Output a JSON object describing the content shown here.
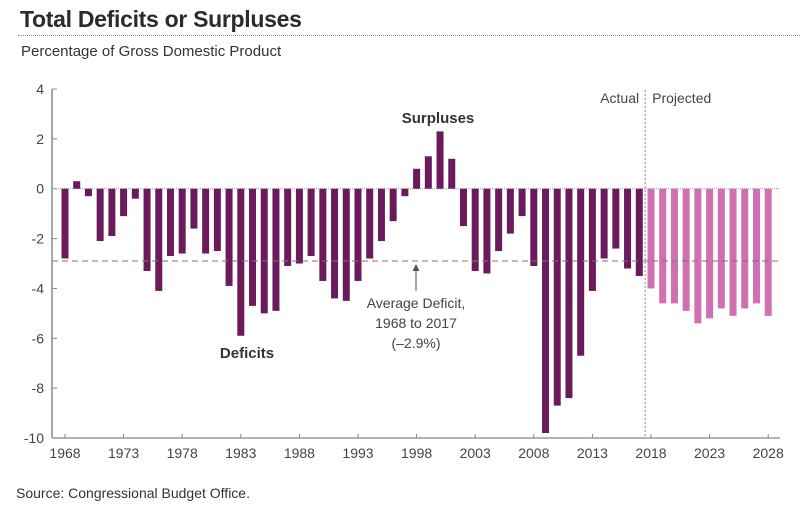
{
  "title": "Total Deficits or Surpluses",
  "subtitle": "Percentage of Gross Domestic Product",
  "source": "Source: Congressional Budget Office.",
  "chart_data": {
    "type": "bar",
    "title": "Total Deficits or Surpluses",
    "subtitle": "Percentage of Gross Domestic Product",
    "xlabel": "",
    "ylabel": "",
    "ylim": [
      -10,
      4
    ],
    "yticks": [
      4,
      2,
      0,
      -2,
      -4,
      -6,
      -8,
      -10
    ],
    "xticks": [
      1968,
      1973,
      1978,
      1983,
      1988,
      1993,
      1998,
      2003,
      2008,
      2013,
      2018,
      2023,
      2028
    ],
    "grid": false,
    "colors": {
      "actual": "#6b1a5c",
      "projected": "#d070b0",
      "axis": "#888888",
      "text": "#444444"
    },
    "series": [
      {
        "name": "Actual",
        "years": [
          1968,
          1969,
          1970,
          1971,
          1972,
          1973,
          1974,
          1975,
          1976,
          1977,
          1978,
          1979,
          1980,
          1981,
          1982,
          1983,
          1984,
          1985,
          1986,
          1987,
          1988,
          1989,
          1990,
          1991,
          1992,
          1993,
          1994,
          1995,
          1996,
          1997,
          1998,
          1999,
          2000,
          2001,
          2002,
          2003,
          2004,
          2005,
          2006,
          2007,
          2008,
          2009,
          2010,
          2011,
          2012,
          2013,
          2014,
          2015,
          2016,
          2017
        ],
        "values": [
          -2.8,
          0.3,
          -0.3,
          -2.1,
          -1.9,
          -1.1,
          -0.4,
          -3.3,
          -4.1,
          -2.7,
          -2.6,
          -1.6,
          -2.6,
          -2.5,
          -3.9,
          -5.9,
          -4.7,
          -5.0,
          -4.9,
          -3.1,
          -3.0,
          -2.7,
          -3.7,
          -4.4,
          -4.5,
          -3.7,
          -2.8,
          -2.1,
          -1.3,
          -0.3,
          0.8,
          1.3,
          2.3,
          1.2,
          -1.5,
          -3.3,
          -3.4,
          -2.5,
          -1.8,
          -1.1,
          -3.1,
          -9.8,
          -8.7,
          -8.4,
          -6.7,
          -4.1,
          -2.8,
          -2.4,
          -3.2,
          -3.5
        ]
      },
      {
        "name": "Projected",
        "years": [
          2018,
          2019,
          2020,
          2021,
          2022,
          2023,
          2024,
          2025,
          2026,
          2027,
          2028
        ],
        "values": [
          -4.0,
          -4.6,
          -4.6,
          -4.9,
          -5.4,
          -5.2,
          -4.8,
          -5.1,
          -4.8,
          -4.6,
          -5.1
        ]
      }
    ],
    "reference_line": {
      "label": "Average Deficit, 1968 to 2017 (–2.9%)",
      "value": -2.9
    },
    "divider": {
      "between": [
        2017,
        2018
      ],
      "left_label": "Actual",
      "right_label": "Projected"
    },
    "annotations": [
      {
        "text": "Surpluses",
        "near_year": 2000
      },
      {
        "text": "Deficits",
        "near_year": 1984
      },
      {
        "lines": [
          "Average Deficit,",
          "1968 to 2017",
          "(–2.9%)"
        ],
        "near_year": 1995
      }
    ]
  }
}
